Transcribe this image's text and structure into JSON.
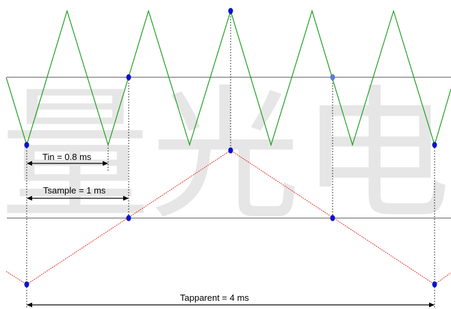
{
  "watermark": "量光电",
  "labels": {
    "tin": "Tin = 0.8 ms",
    "tsample": "Tsample = 1 ms",
    "tapparent": "Tapparent = 4 ms"
  },
  "colors": {
    "input_signal": "#1a9e1a",
    "aliased_signal": "#e8302a",
    "sample_point": "#0a14c8",
    "sample_point_faded": "#5a78e0",
    "reference_line": "#555555",
    "dotted_guide": "#000000",
    "watermark": "#e6e6e6"
  }
}
